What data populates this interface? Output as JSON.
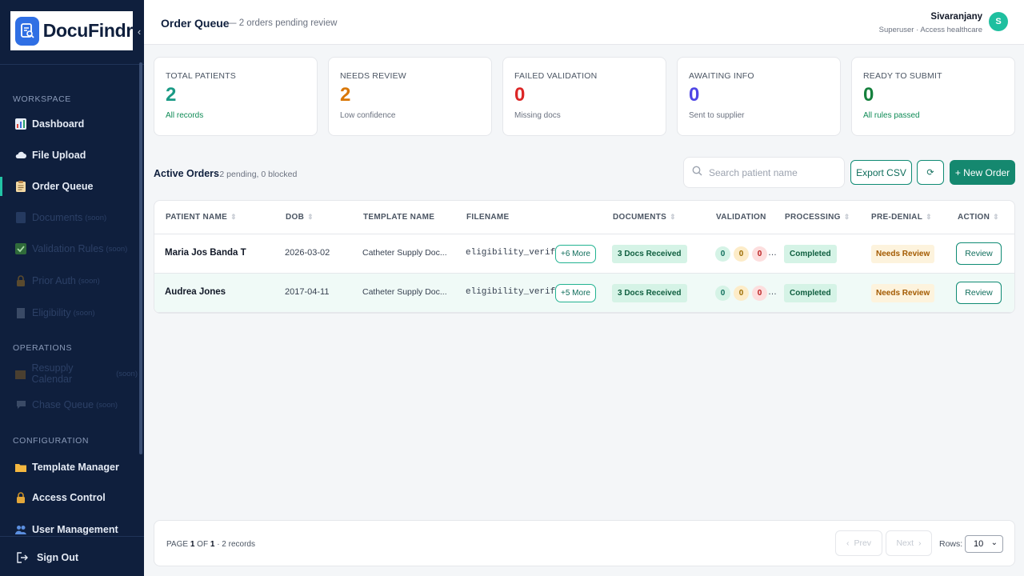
{
  "brand": {
    "name": "DocuFindr"
  },
  "sidebar": {
    "sections": {
      "workspace": "WORKSPACE",
      "operations": "OPERATIONS",
      "configuration": "CONFIGURATION"
    },
    "items": [
      {
        "label": "Dashboard",
        "soon": ""
      },
      {
        "label": "File Upload",
        "soon": ""
      },
      {
        "label": "Order Queue",
        "soon": ""
      },
      {
        "label": "Documents",
        "soon": "(soon)"
      },
      {
        "label": "Validation Rules",
        "soon": "(soon)"
      },
      {
        "label": "Prior Auth",
        "soon": "(soon)"
      },
      {
        "label": "Eligibility",
        "soon": "(soon)"
      },
      {
        "label": "Resupply Calendar",
        "soon": "(soon)"
      },
      {
        "label": "Chase Queue",
        "soon": "(soon)"
      },
      {
        "label": "Template Manager",
        "soon": ""
      },
      {
        "label": "Access Control",
        "soon": ""
      },
      {
        "label": "User Management",
        "soon": ""
      }
    ],
    "sign_out": "Sign Out"
  },
  "header": {
    "title": "Order Queue",
    "subtitle": "— 2 orders pending review",
    "user_name": "Sivaranjany",
    "user_role": "Superuser · Access healthcare",
    "avatar_initial": "S"
  },
  "stats": [
    {
      "label": "TOTAL PATIENTS",
      "value": "2",
      "sub": "All records",
      "color": "#1a9a85",
      "sub_color": "#0f8b56"
    },
    {
      "label": "NEEDS REVIEW",
      "value": "2",
      "sub": "Low confidence",
      "color": "#d97706",
      "sub_color": "#6b7280"
    },
    {
      "label": "FAILED VALIDATION",
      "value": "0",
      "sub": "Missing docs",
      "color": "#dc2626",
      "sub_color": "#6b7280"
    },
    {
      "label": "AWAITING INFO",
      "value": "0",
      "sub": "Sent to supplier",
      "color": "#4f46e5",
      "sub_color": "#6b7280"
    },
    {
      "label": "READY TO SUBMIT",
      "value": "0",
      "sub": "All rules passed",
      "color": "#15803d",
      "sub_color": "#0f8b56"
    }
  ],
  "orders": {
    "title": "Active Orders",
    "subtitle": "· 2 pending, 0 blocked",
    "search_placeholder": "Search patient name",
    "export_label": "Export CSV",
    "refresh_icon": "⟳",
    "new_order_label": "+ New Order",
    "columns": [
      "PATIENT NAME",
      "DOB",
      "TEMPLATE NAME",
      "FILENAME",
      "DOCUMENTS",
      "VALIDATION",
      "PROCESSING",
      "PRE-DENIAL",
      "ACTION"
    ],
    "rows": [
      {
        "patient": "Maria Jos Banda T",
        "dob": "2026-03-02",
        "template": "Catheter Supply Doc...",
        "filename": "eligibility_verifi…",
        "more": "+6 More",
        "documents": "3 Docs Received",
        "validation": [
          "0",
          "0",
          "0"
        ],
        "processing": "Completed",
        "pre_denial": "Needs Review",
        "action": "Review"
      },
      {
        "patient": "Audrea Jones",
        "dob": "2017-04-11",
        "template": "Catheter Supply Doc...",
        "filename": "eligibility_verifi…",
        "more": "+5 More",
        "documents": "3 Docs Received",
        "validation": [
          "0",
          "0",
          "0"
        ],
        "processing": "Completed",
        "pre_denial": "Needs Review",
        "action": "Review"
      }
    ]
  },
  "pagination": {
    "page_label": "PAGE",
    "page_current": "1",
    "of_label": "OF",
    "page_total": "1",
    "records": "· 2 records",
    "prev": "Prev",
    "next": "Next",
    "rows_label": "Rows:",
    "rows_value": "10"
  }
}
